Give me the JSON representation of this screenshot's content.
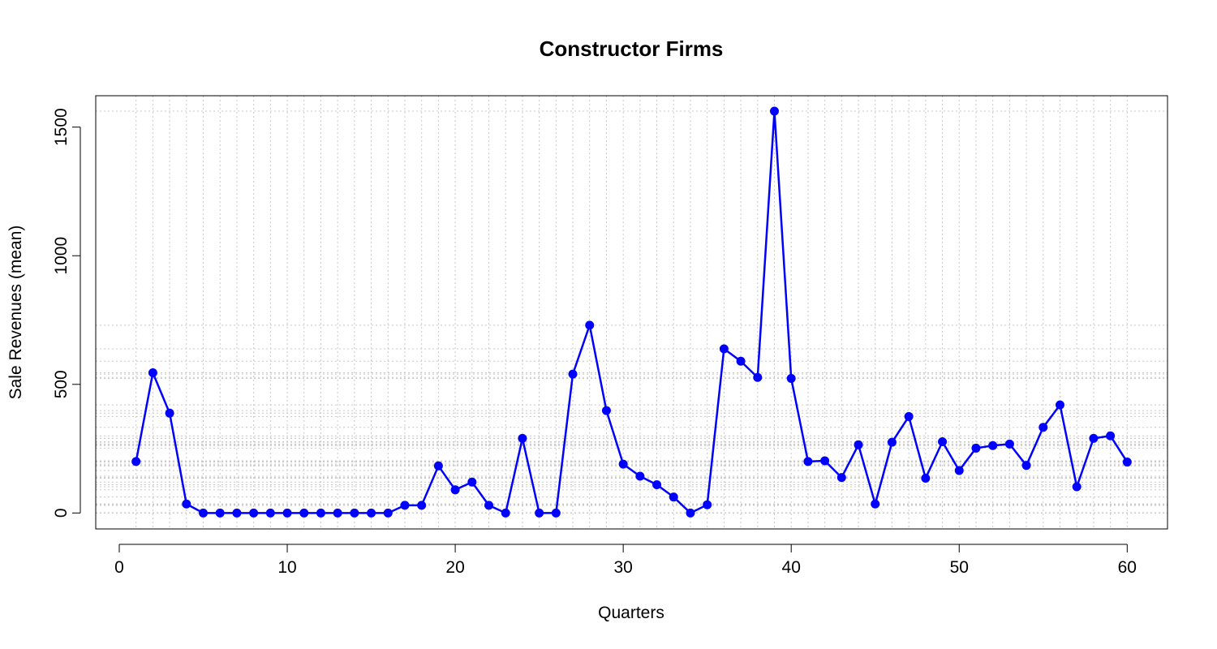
{
  "chart_data": {
    "type": "line",
    "title": "Constructor Firms",
    "xlabel": "Quarters",
    "ylabel": "Sale Revenues (mean)",
    "xlim": [
      -1.4,
      62.4
    ],
    "ylim": [
      -62,
      1622
    ],
    "xticks": [
      0,
      10,
      20,
      30,
      40,
      50,
      60
    ],
    "yticks": [
      0,
      500,
      1000,
      1500
    ],
    "grid": "dotted gray lines at every data x and y value",
    "series": [
      {
        "name": "Sale Revenues (mean)",
        "color": "#0000ff",
        "marker": "filled-circle",
        "x": [
          1,
          2,
          3,
          4,
          5,
          6,
          7,
          8,
          9,
          10,
          11,
          12,
          13,
          14,
          15,
          16,
          17,
          18,
          19,
          20,
          21,
          22,
          23,
          24,
          25,
          26,
          27,
          28,
          29,
          30,
          31,
          32,
          33,
          34,
          35,
          36,
          37,
          38,
          39,
          40,
          41,
          42,
          43,
          44,
          45,
          46,
          47,
          48,
          49,
          50,
          51,
          52,
          53,
          54,
          55,
          56,
          57,
          58,
          59,
          60
        ],
        "y": [
          200,
          545,
          388,
          35,
          0,
          0,
          0,
          0,
          0,
          0,
          0,
          0,
          0,
          0,
          0,
          0,
          30,
          30,
          183,
          90,
          120,
          30,
          0,
          290,
          0,
          0,
          540,
          730,
          398,
          190,
          143,
          110,
          62,
          0,
          32,
          638,
          590,
          527,
          1562,
          523,
          200,
          203,
          138,
          265,
          35,
          275,
          375,
          135,
          277,
          165,
          252,
          262,
          268,
          185,
          333,
          420,
          102,
          290,
          300,
          198
        ]
      }
    ]
  }
}
